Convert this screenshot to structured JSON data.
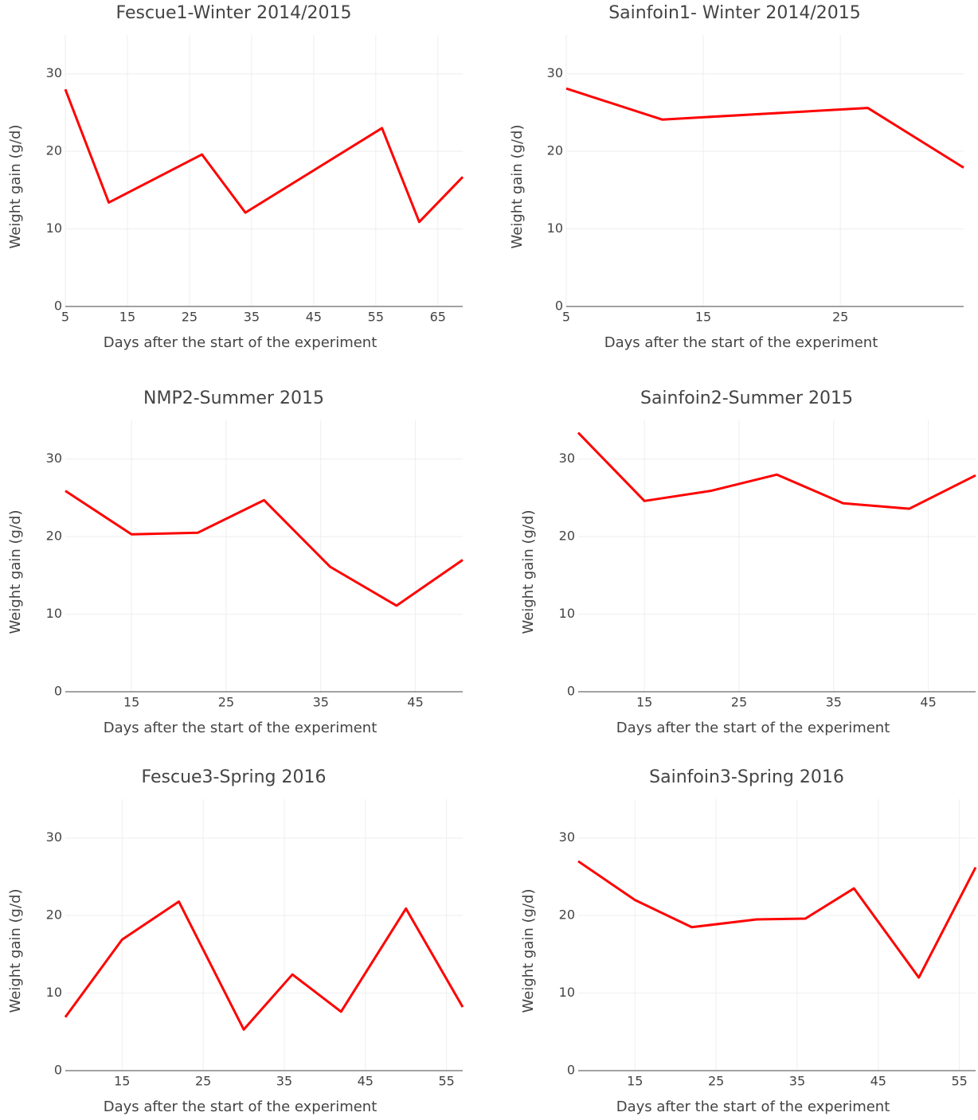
{
  "chart_data": [
    {
      "type": "line",
      "title": "Fescue1-Winter 2014/2015",
      "x_label": "Days after the start of the experiment",
      "y_label": "Weight gain (g/d)",
      "x": [
        5,
        12,
        27,
        34,
        56,
        62,
        69
      ],
      "values": [
        28,
        13.4,
        19.6,
        12.1,
        23,
        10.9,
        16.7
      ],
      "color": "#ff0000",
      "xlim": [
        5,
        69
      ],
      "ylim": [
        0,
        35
      ],
      "xticks": [
        5,
        15,
        25,
        35,
        45,
        55,
        65
      ],
      "yticks": [
        0,
        10,
        20,
        30
      ],
      "grid": true
    },
    {
      "type": "line",
      "title": "Sainfoin1- Winter 2014/2015",
      "x_label": "Days after the start of the experiment",
      "y_label": "Weight gain (g/d)",
      "x": [
        5,
        12,
        27,
        34
      ],
      "values": [
        28.1,
        24.1,
        25.6,
        17.9
      ],
      "color": "#ff0000",
      "xlim": [
        5,
        34
      ],
      "ylim": [
        0,
        35
      ],
      "xticks": [
        5,
        15,
        25
      ],
      "yticks": [
        0,
        10,
        20,
        30
      ],
      "grid": true
    },
    {
      "type": "line",
      "title": "NMP2-Summer 2015",
      "x_label": "Days after the start of the experiment",
      "y_label": "Weight gain (g/d)",
      "x": [
        8,
        15,
        22,
        29,
        36,
        43,
        50
      ],
      "values": [
        25.9,
        20.3,
        20.5,
        24.7,
        16.1,
        11.1,
        17
      ],
      "color": "#ff0000",
      "xlim": [
        8,
        50
      ],
      "ylim": [
        0,
        35
      ],
      "xticks": [
        15,
        25,
        35,
        45
      ],
      "yticks": [
        0,
        10,
        20,
        30
      ],
      "grid": true
    },
    {
      "type": "line",
      "title": "Sainfoin2-Summer 2015",
      "x_label": "Days after the start of the experiment",
      "y_label": "Weight gain (g/d)",
      "x": [
        8,
        15,
        22,
        29,
        36,
        43,
        50
      ],
      "values": [
        33.4,
        24.6,
        25.9,
        28,
        24.3,
        23.6,
        27.9
      ],
      "color": "#ff0000",
      "xlim": [
        8,
        50
      ],
      "ylim": [
        0,
        35
      ],
      "xticks": [
        15,
        25,
        35,
        45
      ],
      "yticks": [
        0,
        10,
        20,
        30
      ],
      "grid": true
    },
    {
      "type": "line",
      "title": "Fescue3-Spring 2016",
      "x_label": "Days after the start of the experiment",
      "y_label": "Weight gain (g/d)",
      "x": [
        8,
        15,
        22,
        30,
        36,
        42,
        50,
        57
      ],
      "values": [
        6.9,
        16.9,
        21.8,
        5.3,
        12.4,
        7.6,
        20.9,
        8.2
      ],
      "color": "#ff0000",
      "xlim": [
        8,
        57
      ],
      "ylim": [
        0,
        35
      ],
      "xticks": [
        15,
        25,
        35,
        45,
        55
      ],
      "yticks": [
        0,
        10,
        20,
        30
      ],
      "grid": true
    },
    {
      "type": "line",
      "title": "Sainfoin3-Spring 2016",
      "x_label": "Days after the start of the experiment",
      "y_label": "Weight gain (g/d)",
      "x": [
        8,
        15,
        22,
        30,
        36,
        42,
        50,
        57
      ],
      "values": [
        27,
        22,
        18.5,
        19.5,
        19.6,
        23.5,
        12,
        26.2
      ],
      "color": "#ff0000",
      "xlim": [
        8,
        57
      ],
      "ylim": [
        0,
        35
      ],
      "xticks": [
        15,
        25,
        35,
        45,
        55
      ],
      "yticks": [
        0,
        10,
        20,
        30
      ],
      "grid": true
    }
  ]
}
